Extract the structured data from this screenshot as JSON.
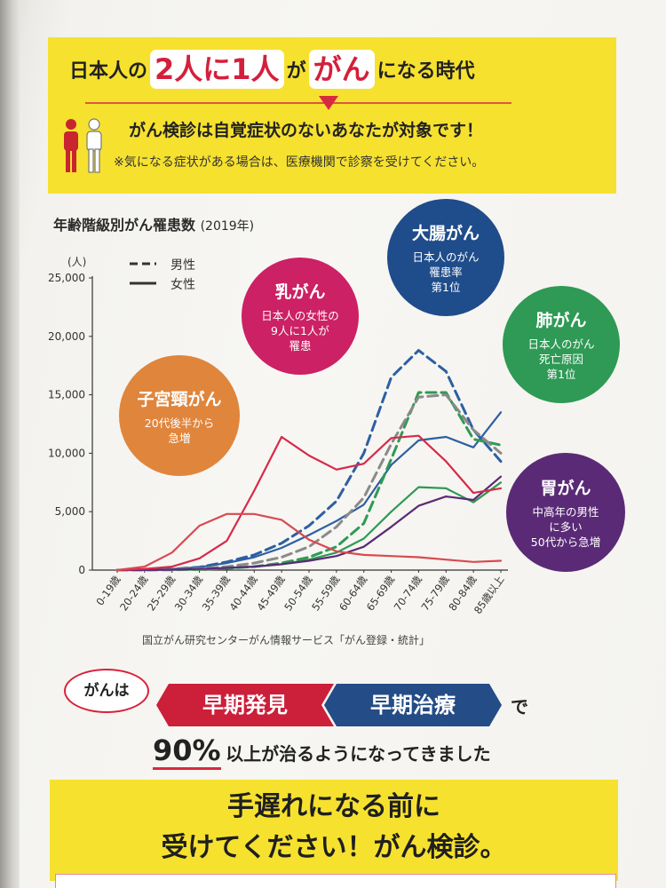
{
  "header": {
    "headline_pre": "日本人の",
    "headline_hl1": "2人に1人",
    "headline_mid": "が",
    "headline_hl2": "がん",
    "headline_post": "になる時代",
    "sub_title": "がん検診は自覚症状のないあなたが対象です！",
    "note": "※気になる症状がある場合は、医療機関で診察を受けてください。"
  },
  "bubbles": {
    "colon": {
      "title": "大腸がん",
      "desc": "日本人のがん\n罹患率\n第1位",
      "color": "#1f4c8a"
    },
    "breast": {
      "title": "乳がん",
      "desc": "日本人の女性の\n9人に1人が\n罹患",
      "color": "#cc2164"
    },
    "lung": {
      "title": "肺がん",
      "desc": "日本人のがん\n死亡原因\n第1位",
      "color": "#2e9a55"
    },
    "cervical": {
      "title": "子宮頸がん",
      "desc": "20代後半から\n急増",
      "color": "#e0853c"
    },
    "stomach": {
      "title": "胃がん",
      "desc": "中高年の男性\nに多い\n50代から急増",
      "color": "#5a2a76"
    }
  },
  "source": "国立がん研究センターがん情報サービス「がん登録・統計」",
  "cta": {
    "gan": "がんは",
    "early_detection": "早期発見",
    "early_treatment": "早期治療",
    "de": "で",
    "pct": "90%",
    "pct_rest": "以上が治るようになってきました",
    "bottom_line1": "手遅れになる前に",
    "bottom_line2": "受けてください！がん検診。"
  },
  "chart_data": {
    "type": "line",
    "title": "年齢階級別がん罹患数",
    "subtitle": "(2019年)",
    "ylabel": "(人)",
    "ylim": [
      0,
      25000
    ],
    "yticks": [
      0,
      5000,
      10000,
      15000,
      20000,
      25000
    ],
    "ytick_labels": [
      "0",
      "5,000",
      "10,000",
      "15,000",
      "20,000",
      "25,000"
    ],
    "categories": [
      "0-19歳",
      "20-24歳",
      "25-29歳",
      "30-34歳",
      "35-39歳",
      "40-44歳",
      "45-49歳",
      "50-54歳",
      "55-59歳",
      "60-64歳",
      "65-69歳",
      "70-74歳",
      "75-79歳",
      "80-84歳",
      "85歳以上"
    ],
    "legend": [
      {
        "label": "男性",
        "style": "dashed"
      },
      {
        "label": "女性",
        "style": "solid"
      }
    ],
    "series": [
      {
        "cancer": "colon",
        "sex": "male",
        "color": "#2d5fa3",
        "dashed": true,
        "values": [
          0,
          20,
          80,
          250,
          700,
          1300,
          2300,
          3800,
          5900,
          10000,
          16500,
          18800,
          17000,
          12000,
          9300
        ]
      },
      {
        "cancer": "colon",
        "sex": "female",
        "color": "#2d5fa3",
        "dashed": false,
        "values": [
          0,
          20,
          80,
          250,
          600,
          1100,
          1900,
          3000,
          4200,
          5600,
          9000,
          11100,
          11400,
          10500,
          13500
        ]
      },
      {
        "cancer": "lung",
        "sex": "male",
        "color": "#2e9a55",
        "dashed": true,
        "values": [
          0,
          5,
          20,
          60,
          150,
          300,
          600,
          1100,
          2000,
          4000,
          9500,
          15200,
          15200,
          11200,
          10700
        ]
      },
      {
        "cancer": "lung",
        "sex": "female",
        "color": "#2e9a55",
        "dashed": false,
        "values": [
          0,
          5,
          20,
          60,
          150,
          300,
          500,
          900,
          1500,
          2700,
          5000,
          7100,
          7000,
          5800,
          7500
        ]
      },
      {
        "cancer": "stomach",
        "sex": "male",
        "color": "#8a8a8a",
        "dashed": true,
        "values": [
          0,
          10,
          40,
          120,
          300,
          600,
          1100,
          2000,
          3700,
          6200,
          10800,
          14800,
          15000,
          12000,
          10000
        ]
      },
      {
        "cancer": "stomach",
        "sex": "female",
        "color": "#5a2a76",
        "dashed": false,
        "values": [
          0,
          10,
          40,
          100,
          200,
          300,
          500,
          800,
          1200,
          2000,
          3700,
          5500,
          6300,
          6000,
          8000
        ]
      },
      {
        "cancer": "breast",
        "sex": "female",
        "color": "#d62a4a",
        "dashed": false,
        "values": [
          0,
          100,
          300,
          1000,
          2500,
          6800,
          11400,
          9800,
          8600,
          9100,
          11300,
          11500,
          9300,
          6600,
          7000
        ]
      },
      {
        "cancer": "cervical",
        "sex": "female",
        "color": "#d84a50",
        "dashed": false,
        "values": [
          0,
          300,
          1500,
          3800,
          4800,
          4800,
          4300,
          2600,
          1600,
          1300,
          1200,
          1100,
          900,
          700,
          800
        ]
      }
    ]
  }
}
